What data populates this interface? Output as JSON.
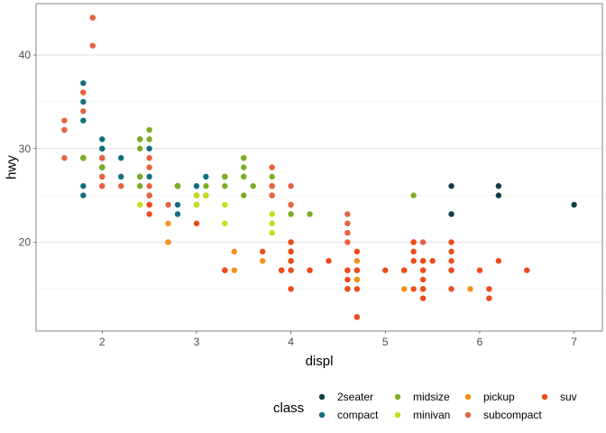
{
  "chart_data": {
    "type": "scatter",
    "xlabel": "displ",
    "ylabel": "hwy",
    "xlim": [
      1.3,
      7.3
    ],
    "ylim": [
      10.5,
      45.5
    ],
    "x_ticks": [
      2,
      3,
      4,
      5,
      6,
      7
    ],
    "y_ticks": [
      20,
      30,
      40
    ],
    "grid": true,
    "legend": {
      "title": "class",
      "placement": "bottom",
      "entries": [
        "2seater",
        "compact",
        "midsize",
        "minivan",
        "pickup",
        "subcompact",
        "suv"
      ]
    },
    "colors": {
      "2seater": "#133B4A",
      "compact": "#126E7F",
      "midsize": "#7CAD22",
      "minivan": "#C7DD1A",
      "pickup": "#F3901A",
      "subcompact": "#E8623F",
      "suv": "#EE4A1A"
    },
    "series": [
      {
        "name": "2seater",
        "points": [
          [
            5.7,
            26
          ],
          [
            5.7,
            23
          ],
          [
            6.2,
            26
          ],
          [
            6.2,
            25
          ],
          [
            7.0,
            24
          ]
        ]
      },
      {
        "name": "compact",
        "points": [
          [
            1.8,
            29
          ],
          [
            1.8,
            29
          ],
          [
            2.0,
            31
          ],
          [
            2.0,
            30
          ],
          [
            2.8,
            26
          ],
          [
            2.8,
            26
          ],
          [
            3.1,
            27
          ],
          [
            1.8,
            26
          ],
          [
            1.8,
            25
          ],
          [
            2.0,
            28
          ],
          [
            2.0,
            28
          ],
          [
            2.2,
            27
          ],
          [
            2.4,
            27
          ],
          [
            3.0,
            26
          ],
          [
            3.3,
            27
          ],
          [
            2.0,
            29
          ],
          [
            2.0,
            29
          ],
          [
            1.8,
            37
          ],
          [
            1.8,
            35
          ],
          [
            2.0,
            30
          ],
          [
            2.8,
            26
          ],
          [
            2.4,
            31
          ],
          [
            2.5,
            25
          ],
          [
            2.5,
            27
          ],
          [
            2.8,
            24
          ],
          [
            1.8,
            33
          ],
          [
            2.0,
            29
          ],
          [
            2.8,
            23
          ],
          [
            3.0,
            24
          ],
          [
            3.1,
            25
          ],
          [
            2.5,
            30
          ],
          [
            2.2,
            29
          ],
          [
            2.0,
            28
          ]
        ]
      },
      {
        "name": "midsize",
        "points": [
          [
            2.8,
            26
          ],
          [
            3.1,
            25
          ],
          [
            2.4,
            30
          ],
          [
            2.4,
            26
          ],
          [
            2.4,
            31
          ],
          [
            3.3,
            26
          ],
          [
            3.0,
            25
          ],
          [
            3.5,
            27
          ],
          [
            3.5,
            29
          ],
          [
            3.8,
            26
          ],
          [
            3.8,
            27
          ],
          [
            2.5,
            32
          ],
          [
            2.5,
            31
          ],
          [
            3.5,
            27
          ],
          [
            4.2,
            23
          ],
          [
            2.4,
            27
          ],
          [
            2.5,
            25
          ],
          [
            3.3,
            27
          ],
          [
            3.5,
            29
          ],
          [
            4.0,
            23
          ],
          [
            5.3,
            25
          ],
          [
            3.0,
            25
          ],
          [
            3.8,
            25
          ],
          [
            2.0,
            27
          ],
          [
            1.8,
            29
          ],
          [
            1.8,
            29
          ],
          [
            2.0,
            29
          ],
          [
            2.0,
            28
          ],
          [
            3.6,
            26
          ],
          [
            3.8,
            28
          ],
          [
            3.8,
            26
          ],
          [
            3.1,
            26
          ],
          [
            3.0,
            25
          ],
          [
            3.5,
            25
          ],
          [
            3.5,
            28
          ]
        ]
      },
      {
        "name": "minivan",
        "points": [
          [
            2.4,
            24
          ],
          [
            3.0,
            24
          ],
          [
            3.3,
            22
          ],
          [
            3.3,
            24
          ],
          [
            3.8,
            23
          ],
          [
            3.8,
            21
          ],
          [
            4.0,
            24
          ],
          [
            3.8,
            22
          ],
          [
            3.0,
            25
          ],
          [
            3.1,
            25
          ]
        ]
      },
      {
        "name": "pickup",
        "points": [
          [
            2.7,
            20
          ],
          [
            2.7,
            20
          ],
          [
            2.7,
            22
          ],
          [
            3.4,
            17
          ],
          [
            3.4,
            19
          ],
          [
            4.0,
            18
          ],
          [
            4.0,
            20
          ],
          [
            4.7,
            16
          ],
          [
            4.7,
            19
          ],
          [
            4.7,
            17
          ],
          [
            5.2,
            17
          ],
          [
            5.2,
            15
          ],
          [
            5.7,
            17
          ],
          [
            5.9,
            15
          ],
          [
            3.7,
            18
          ],
          [
            3.9,
            17
          ],
          [
            4.2,
            17
          ],
          [
            4.7,
            18
          ],
          [
            4.7,
            16
          ],
          [
            4.6,
            17
          ],
          [
            5.4,
            17
          ],
          [
            5.4,
            15
          ],
          [
            4.0,
            17
          ],
          [
            4.7,
            16
          ]
        ]
      },
      {
        "name": "subcompact",
        "points": [
          [
            1.6,
            33
          ],
          [
            1.6,
            32
          ],
          [
            1.6,
            32
          ],
          [
            1.6,
            29
          ],
          [
            1.8,
            34
          ],
          [
            1.8,
            36
          ],
          [
            1.8,
            36
          ],
          [
            1.9,
            44
          ],
          [
            1.9,
            41
          ],
          [
            1.9,
            44
          ],
          [
            2.0,
            29
          ],
          [
            2.0,
            26
          ],
          [
            2.0,
            27
          ],
          [
            2.0,
            26
          ],
          [
            2.2,
            26
          ],
          [
            2.5,
            24
          ],
          [
            2.5,
            25
          ],
          [
            2.5,
            28
          ],
          [
            2.5,
            29
          ],
          [
            2.7,
            24
          ],
          [
            3.8,
            26
          ],
          [
            3.8,
            25
          ],
          [
            4.0,
            26
          ],
          [
            4.6,
            23
          ],
          [
            4.6,
            22
          ],
          [
            4.6,
            21
          ],
          [
            5.4,
            20
          ],
          [
            4.0,
            24
          ],
          [
            4.6,
            20
          ],
          [
            5.4,
            18
          ],
          [
            2.5,
            26
          ],
          [
            3.8,
            28
          ]
        ]
      },
      {
        "name": "suv",
        "points": [
          [
            5.3,
            20
          ],
          [
            5.3,
            15
          ],
          [
            5.3,
            20
          ],
          [
            5.7,
            17
          ],
          [
            6.5,
            17
          ],
          [
            5.7,
            18
          ],
          [
            5.7,
            15
          ],
          [
            6.0,
            17
          ],
          [
            6.2,
            18
          ],
          [
            6.1,
            14
          ],
          [
            4.6,
            15
          ],
          [
            5.4,
            14
          ],
          [
            5.4,
            17
          ],
          [
            4.7,
            17
          ],
          [
            4.7,
            12
          ],
          [
            4.7,
            19
          ],
          [
            4.7,
            17
          ],
          [
            5.2,
            17
          ],
          [
            4.6,
            17
          ],
          [
            5.4,
            15
          ],
          [
            5.4,
            16
          ],
          [
            4.0,
            20
          ],
          [
            4.0,
            17
          ],
          [
            4.0,
            19
          ],
          [
            4.0,
            18
          ],
          [
            4.6,
            16
          ],
          [
            5.0,
            17
          ],
          [
            4.2,
            17
          ],
          [
            4.4,
            18
          ],
          [
            4.6,
            15
          ],
          [
            5.3,
            19
          ],
          [
            5.4,
            18
          ],
          [
            4.0,
            15
          ],
          [
            5.5,
            18
          ],
          [
            4.7,
            12
          ],
          [
            3.3,
            17
          ],
          [
            3.3,
            17
          ],
          [
            3.9,
            17
          ],
          [
            4.6,
            17
          ],
          [
            2.5,
            24
          ],
          [
            3.0,
            22
          ],
          [
            2.5,
            23
          ],
          [
            3.7,
            19
          ],
          [
            3.9,
            17
          ],
          [
            4.0,
            19
          ],
          [
            3.3,
            17
          ],
          [
            4.7,
            15
          ],
          [
            5.7,
            19
          ],
          [
            6.1,
            15
          ],
          [
            5.3,
            18
          ],
          [
            5.7,
            20
          ]
        ]
      }
    ]
  }
}
